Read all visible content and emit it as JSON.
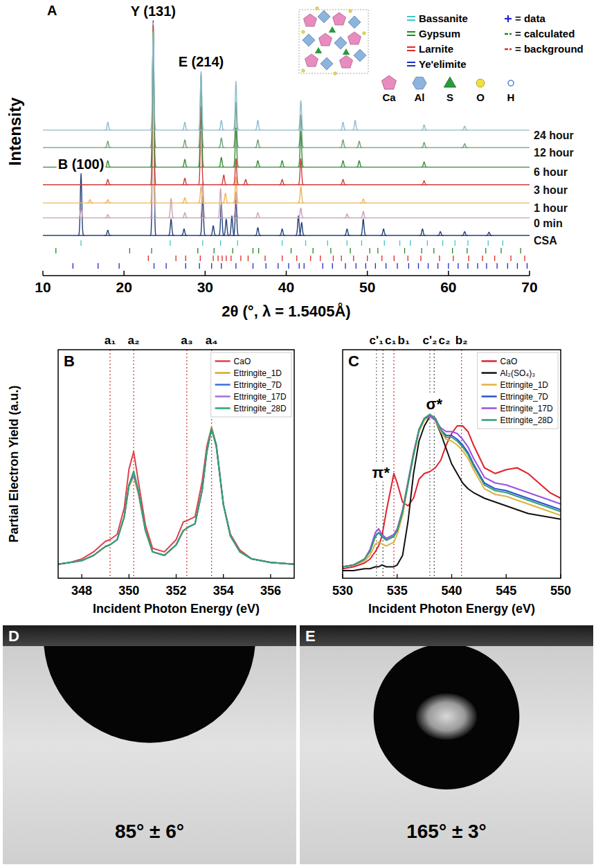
{
  "chart_data": [
    {
      "type": "line",
      "panel": "A",
      "x_label": "2θ (°, λ = 1.5405Å)",
      "y_label": "Intensity",
      "xlim": [
        10,
        70
      ],
      "xticks": [
        10,
        20,
        30,
        40,
        50,
        60,
        70
      ],
      "ylim": [
        0,
        330
      ],
      "tick_labels": "x",
      "legend": "top-right",
      "series": [
        {
          "name": "CSA",
          "color": "#22407a",
          "offset": 0,
          "x": [
            14.7,
            18.0,
            23.6,
            25.8,
            27.4,
            29.7,
            31.0,
            32.0,
            32.6,
            33.3,
            33.8,
            36.5,
            39.5,
            41.5,
            41.9,
            47.5,
            49.5,
            52.0,
            56.8,
            59.0,
            62.0,
            65.0
          ],
          "values": [
            95,
            8,
            330,
            25,
            10,
            60,
            15,
            50,
            25,
            30,
            55,
            12,
            10,
            30,
            20,
            10,
            25,
            10,
            10,
            6,
            6,
            5
          ]
        },
        {
          "name": "0 min",
          "color": "#c8a0b4",
          "offset": 27,
          "x": [
            14.7,
            18.0,
            23.6,
            25.8,
            27.5,
            29.7,
            31.9,
            33.8,
            36.5,
            41.8,
            47.5,
            49.5
          ],
          "values": [
            15,
            5,
            300,
            30,
            8,
            55,
            45,
            40,
            8,
            15,
            6,
            10
          ]
        },
        {
          "name": "1 hour",
          "color": "#f0b45a",
          "offset": 50,
          "x": [
            15.8,
            18.0,
            23.6,
            27.5,
            29.5,
            32.5,
            33.8,
            41.8,
            49.5
          ],
          "values": [
            5,
            5,
            270,
            8,
            25,
            15,
            40,
            25,
            6
          ]
        },
        {
          "name": "3 hour",
          "color": "#d23c3c",
          "offset": 78,
          "x": [
            18.0,
            23.6,
            27.5,
            29.5,
            32.3,
            33.8,
            35.0,
            39.5,
            41.8,
            47.0,
            57.0
          ],
          "values": [
            8,
            245,
            10,
            120,
            15,
            40,
            8,
            8,
            40,
            8,
            6
          ]
        },
        {
          "name": "6 hour",
          "color": "#3a8c3a",
          "offset": 105,
          "x": [
            18.0,
            23.6,
            27.5,
            29.5,
            32.0,
            33.8,
            36.5,
            39.5,
            41.8,
            47.0,
            49.0,
            57.0
          ],
          "values": [
            10,
            210,
            12,
            140,
            15,
            60,
            10,
            10,
            55,
            10,
            10,
            8
          ]
        },
        {
          "name": "12 hour",
          "color": "#6f9f78",
          "offset": 135,
          "x": [
            18.0,
            23.6,
            27.5,
            29.5,
            32.0,
            33.8,
            36.5,
            41.8,
            47.0,
            49.0,
            57.0,
            62.0
          ],
          "values": [
            10,
            180,
            12,
            115,
            15,
            70,
            12,
            50,
            12,
            10,
            8,
            6
          ]
        },
        {
          "name": "24 hour",
          "color": "#8dbccb",
          "offset": 162,
          "x": [
            18.0,
            23.6,
            27.5,
            29.5,
            32.0,
            33.8,
            36.5,
            41.8,
            47.0,
            48.5,
            57.0,
            62.0
          ],
          "values": [
            12,
            150,
            12,
            90,
            15,
            75,
            15,
            45,
            12,
            15,
            8,
            6
          ]
        }
      ],
      "peak_labels": [
        {
          "text": "Y (131)",
          "x": 23.6
        },
        {
          "text": "E (214)",
          "x": 29.5
        },
        {
          "text": "B (100)",
          "x": 14.7
        }
      ],
      "phases": [
        {
          "name": "Bassanite",
          "color": "#3cc8c8",
          "reflections": [
            14.7,
            25.7,
            29.7,
            31.9,
            34.0,
            39.5,
            42.4,
            45.1,
            47.5,
            49.3,
            52.1,
            54.0,
            55.3,
            57.4,
            59.3,
            60.8,
            62.4,
            64.9,
            66.7
          ]
        },
        {
          "name": "Gypsum",
          "color": "#1e8c1e",
          "reflections": [
            11.6,
            20.7,
            23.4,
            29.1,
            31.1,
            33.4,
            35.9,
            36.6,
            40.6,
            43.3,
            45.5,
            47.9,
            50.3,
            51.3,
            54.6,
            56.7,
            58.2,
            60.5,
            62.3,
            64.6,
            66.5,
            68.9
          ]
        },
        {
          "name": "Larnite",
          "color": "#dc2828",
          "reflections": [
            23.0,
            26.4,
            27.6,
            29.4,
            31.0,
            31.6,
            32.1,
            32.6,
            33.2,
            34.4,
            35.3,
            37.4,
            39.5,
            41.3,
            43.0,
            44.2,
            45.8,
            46.8,
            48.3,
            50.0,
            51.8,
            53.3,
            55.0,
            56.6,
            58.9,
            60.6,
            62.5,
            64.2,
            65.7,
            67.7,
            69.4
          ]
        },
        {
          "name": "Ye'elimite",
          "color": "#1e28c8",
          "reflections": [
            13.7,
            16.8,
            19.4,
            23.7,
            25.2,
            27.6,
            29.3,
            30.8,
            32.0,
            33.8,
            35.9,
            37.5,
            39.0,
            40.3,
            41.6,
            42.2,
            44.5,
            45.7,
            47.3,
            48.6,
            49.8,
            51.0,
            52.3,
            53.7,
            55.1,
            56.3,
            57.5,
            58.7,
            60.0,
            61.2,
            62.4,
            63.6,
            64.7,
            66.0,
            67.3,
            68.5,
            69.7
          ]
        }
      ],
      "fit_legend": [
        {
          "name": "= data",
          "marker": "+",
          "color": "#1e28c8"
        },
        {
          "name": "= calculated",
          "line_style": "dashed",
          "color": "#1e8c1e"
        },
        {
          "name": "= background",
          "line_style": "dashed",
          "color": "#dc2828"
        }
      ],
      "atoms": [
        {
          "label": "Ca",
          "color": "#e88cc0",
          "marker": "pentagon"
        },
        {
          "label": "Al",
          "color": "#8cb4dc",
          "marker": "hexagon"
        },
        {
          "label": "S",
          "color": "#2a9a3a",
          "marker": "triangle"
        },
        {
          "label": "O",
          "color": "#f0e040",
          "marker": "circle"
        },
        {
          "label": "H",
          "color": "#5a8ce0",
          "marker": "ring"
        }
      ]
    },
    {
      "type": "line",
      "panel": "B",
      "x_label": "Incident Photon Energy (eV)",
      "y_label": "Partial Electron Yield (a.u.)",
      "xlim": [
        347,
        357
      ],
      "xticks": [
        348,
        350,
        352,
        354,
        356
      ],
      "ylim": [
        0,
        1.3
      ],
      "tick_labels": "x",
      "legend": "top-right",
      "x": [
        347,
        347.5,
        348,
        348.5,
        349,
        349.2,
        349.5,
        349.8,
        350,
        350.2,
        350.4,
        350.7,
        351,
        351.5,
        352,
        352.3,
        352.5,
        352.8,
        353.1,
        353.3,
        353.5,
        353.7,
        354,
        354.3,
        354.7,
        355.2,
        356,
        357
      ],
      "series": [
        {
          "name": "CaO",
          "color": "#e0404a",
          "values": [
            0.08,
            0.09,
            0.11,
            0.15,
            0.21,
            0.22,
            0.25,
            0.4,
            0.62,
            0.72,
            0.55,
            0.3,
            0.17,
            0.15,
            0.22,
            0.32,
            0.33,
            0.35,
            0.55,
            0.75,
            0.86,
            0.75,
            0.42,
            0.25,
            0.16,
            0.11,
            0.09,
            0.08
          ]
        },
        {
          "name": "Ettringite_1D",
          "color": "#d4a82a",
          "values": [
            0.08,
            0.09,
            0.1,
            0.13,
            0.18,
            0.19,
            0.22,
            0.35,
            0.52,
            0.58,
            0.48,
            0.27,
            0.15,
            0.13,
            0.19,
            0.27,
            0.29,
            0.31,
            0.5,
            0.72,
            0.86,
            0.76,
            0.42,
            0.24,
            0.15,
            0.11,
            0.09,
            0.08
          ]
        },
        {
          "name": "Ettringite_7D",
          "color": "#3a6fd8",
          "values": [
            0.08,
            0.09,
            0.1,
            0.13,
            0.18,
            0.19,
            0.22,
            0.35,
            0.53,
            0.59,
            0.49,
            0.27,
            0.15,
            0.13,
            0.19,
            0.27,
            0.29,
            0.31,
            0.5,
            0.72,
            0.85,
            0.76,
            0.42,
            0.24,
            0.15,
            0.11,
            0.09,
            0.08
          ]
        },
        {
          "name": "Ettringite_17D",
          "color": "#a46ed8",
          "values": [
            0.08,
            0.09,
            0.1,
            0.13,
            0.18,
            0.19,
            0.22,
            0.35,
            0.53,
            0.6,
            0.49,
            0.27,
            0.15,
            0.13,
            0.19,
            0.27,
            0.29,
            0.31,
            0.5,
            0.72,
            0.85,
            0.75,
            0.42,
            0.24,
            0.15,
            0.11,
            0.09,
            0.08
          ]
        },
        {
          "name": "Ettringite_28D",
          "color": "#2fa36b",
          "values": [
            0.08,
            0.09,
            0.1,
            0.13,
            0.18,
            0.19,
            0.22,
            0.35,
            0.53,
            0.61,
            0.5,
            0.27,
            0.15,
            0.13,
            0.19,
            0.27,
            0.29,
            0.31,
            0.5,
            0.72,
            0.85,
            0.75,
            0.42,
            0.24,
            0.15,
            0.11,
            0.09,
            0.08
          ]
        }
      ],
      "reference_lines": [
        {
          "label": "a₁",
          "x": 349.2,
          "color": "#d04040"
        },
        {
          "label": "a₂",
          "x": 350.2,
          "color": "#d04040"
        },
        {
          "label": "a₃",
          "x": 352.45,
          "color": "#d04040"
        },
        {
          "label": "a₄",
          "x": 353.5,
          "color": "#d04040"
        }
      ]
    },
    {
      "type": "line",
      "panel": "C",
      "x_label": "Incident Photon Energy (eV)",
      "xlim": [
        530,
        550
      ],
      "xticks": [
        530,
        535,
        540,
        545,
        550
      ],
      "ylim": [
        0,
        1.2
      ],
      "tick_labels": "x",
      "legend": "top-right",
      "x": [
        530,
        531,
        532,
        532.5,
        533,
        533.3,
        533.6,
        534,
        534.7,
        535,
        535.5,
        536,
        536.5,
        537,
        537.5,
        538,
        538.5,
        539,
        539.5,
        540,
        540.5,
        541,
        541.5,
        542,
        543,
        544,
        545,
        546,
        547,
        548,
        549,
        550
      ],
      "series": [
        {
          "name": "CaO",
          "color": "#e0202a",
          "values": [
            0.05,
            0.06,
            0.08,
            0.1,
            0.14,
            0.17,
            0.22,
            0.35,
            0.55,
            0.5,
            0.4,
            0.38,
            0.42,
            0.52,
            0.55,
            0.56,
            0.58,
            0.62,
            0.7,
            0.76,
            0.8,
            0.8,
            0.77,
            0.7,
            0.58,
            0.55,
            0.57,
            0.58,
            0.55,
            0.5,
            0.45,
            0.42
          ]
        },
        {
          "name": "Al₂(SO₄)₃",
          "color": "#111111",
          "values": [
            0.04,
            0.04,
            0.05,
            0.05,
            0.06,
            0.06,
            0.07,
            0.06,
            0.06,
            0.07,
            0.12,
            0.3,
            0.55,
            0.72,
            0.8,
            0.85,
            0.83,
            0.76,
            0.68,
            0.6,
            0.55,
            0.5,
            0.47,
            0.45,
            0.42,
            0.4,
            0.38,
            0.36,
            0.34,
            0.33,
            0.32,
            0.31
          ]
        },
        {
          "name": "Ettringite_1D",
          "color": "#e0b040",
          "values": [
            0.06,
            0.07,
            0.09,
            0.12,
            0.18,
            0.19,
            0.18,
            0.17,
            0.19,
            0.23,
            0.33,
            0.49,
            0.64,
            0.77,
            0.83,
            0.85,
            0.83,
            0.77,
            0.73,
            0.72,
            0.7,
            0.67,
            0.63,
            0.57,
            0.47,
            0.44,
            0.43,
            0.41,
            0.39,
            0.37,
            0.35,
            0.33
          ]
        },
        {
          "name": "Ettringite_7D",
          "color": "#2a50d8",
          "values": [
            0.06,
            0.07,
            0.1,
            0.14,
            0.22,
            0.24,
            0.22,
            0.2,
            0.22,
            0.25,
            0.35,
            0.5,
            0.65,
            0.78,
            0.84,
            0.86,
            0.84,
            0.78,
            0.75,
            0.75,
            0.73,
            0.7,
            0.66,
            0.6,
            0.5,
            0.47,
            0.46,
            0.44,
            0.42,
            0.4,
            0.38,
            0.36
          ]
        },
        {
          "name": "Ettringite_17D",
          "color": "#9a50e0",
          "values": [
            0.06,
            0.07,
            0.1,
            0.15,
            0.24,
            0.26,
            0.23,
            0.21,
            0.23,
            0.26,
            0.36,
            0.51,
            0.66,
            0.78,
            0.84,
            0.85,
            0.83,
            0.79,
            0.77,
            0.77,
            0.76,
            0.73,
            0.69,
            0.63,
            0.53,
            0.5,
            0.49,
            0.47,
            0.45,
            0.43,
            0.41,
            0.39
          ]
        },
        {
          "name": "Ettringite_28D",
          "color": "#30a070",
          "values": [
            0.06,
            0.07,
            0.1,
            0.14,
            0.22,
            0.24,
            0.22,
            0.2,
            0.22,
            0.25,
            0.35,
            0.5,
            0.65,
            0.78,
            0.84,
            0.86,
            0.84,
            0.78,
            0.74,
            0.74,
            0.72,
            0.69,
            0.65,
            0.59,
            0.49,
            0.46,
            0.45,
            0.43,
            0.41,
            0.39,
            0.37,
            0.35
          ]
        }
      ],
      "reference_lines": [
        {
          "label": "c'₁",
          "x": 533.1,
          "color": "#777777"
        },
        {
          "label": "c₁",
          "x": 533.7,
          "color": "#555555"
        },
        {
          "label": "b₁",
          "x": 534.7,
          "color": "#d04040"
        },
        {
          "label": "c'₂",
          "x": 538.0,
          "color": "#777777"
        },
        {
          "label": "c₂",
          "x": 538.4,
          "color": "#555555"
        },
        {
          "label": "b₂",
          "x": 540.9,
          "color": "#d04040"
        }
      ],
      "annotations": [
        "π*",
        "σ*"
      ]
    }
  ],
  "images": [
    {
      "panel": "D",
      "label": "85° ± 6°",
      "contact_angle": 85
    },
    {
      "panel": "E",
      "label": "165° ± 3°",
      "contact_angle": 165
    }
  ]
}
